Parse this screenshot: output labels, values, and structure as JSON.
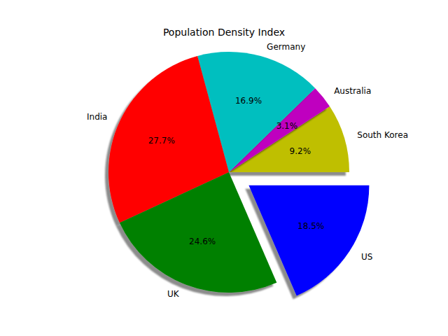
{
  "chart_data": {
    "type": "pie",
    "title": "Population Density Index",
    "categories": [
      "South Korea",
      "Australia",
      "Germany",
      "India",
      "UK",
      "US"
    ],
    "values": [
      9.2,
      3.1,
      16.9,
      27.7,
      24.6,
      18.5
    ],
    "value_labels": [
      "9.2%",
      "3.1%",
      "16.9%",
      "27.7%",
      "24.6%",
      "18.5%"
    ],
    "colors": [
      "#bfbf00",
      "#bf00bf",
      "#00bfbf",
      "#ff0000",
      "#008000",
      "#0000ff"
    ],
    "data_labels": true
  }
}
